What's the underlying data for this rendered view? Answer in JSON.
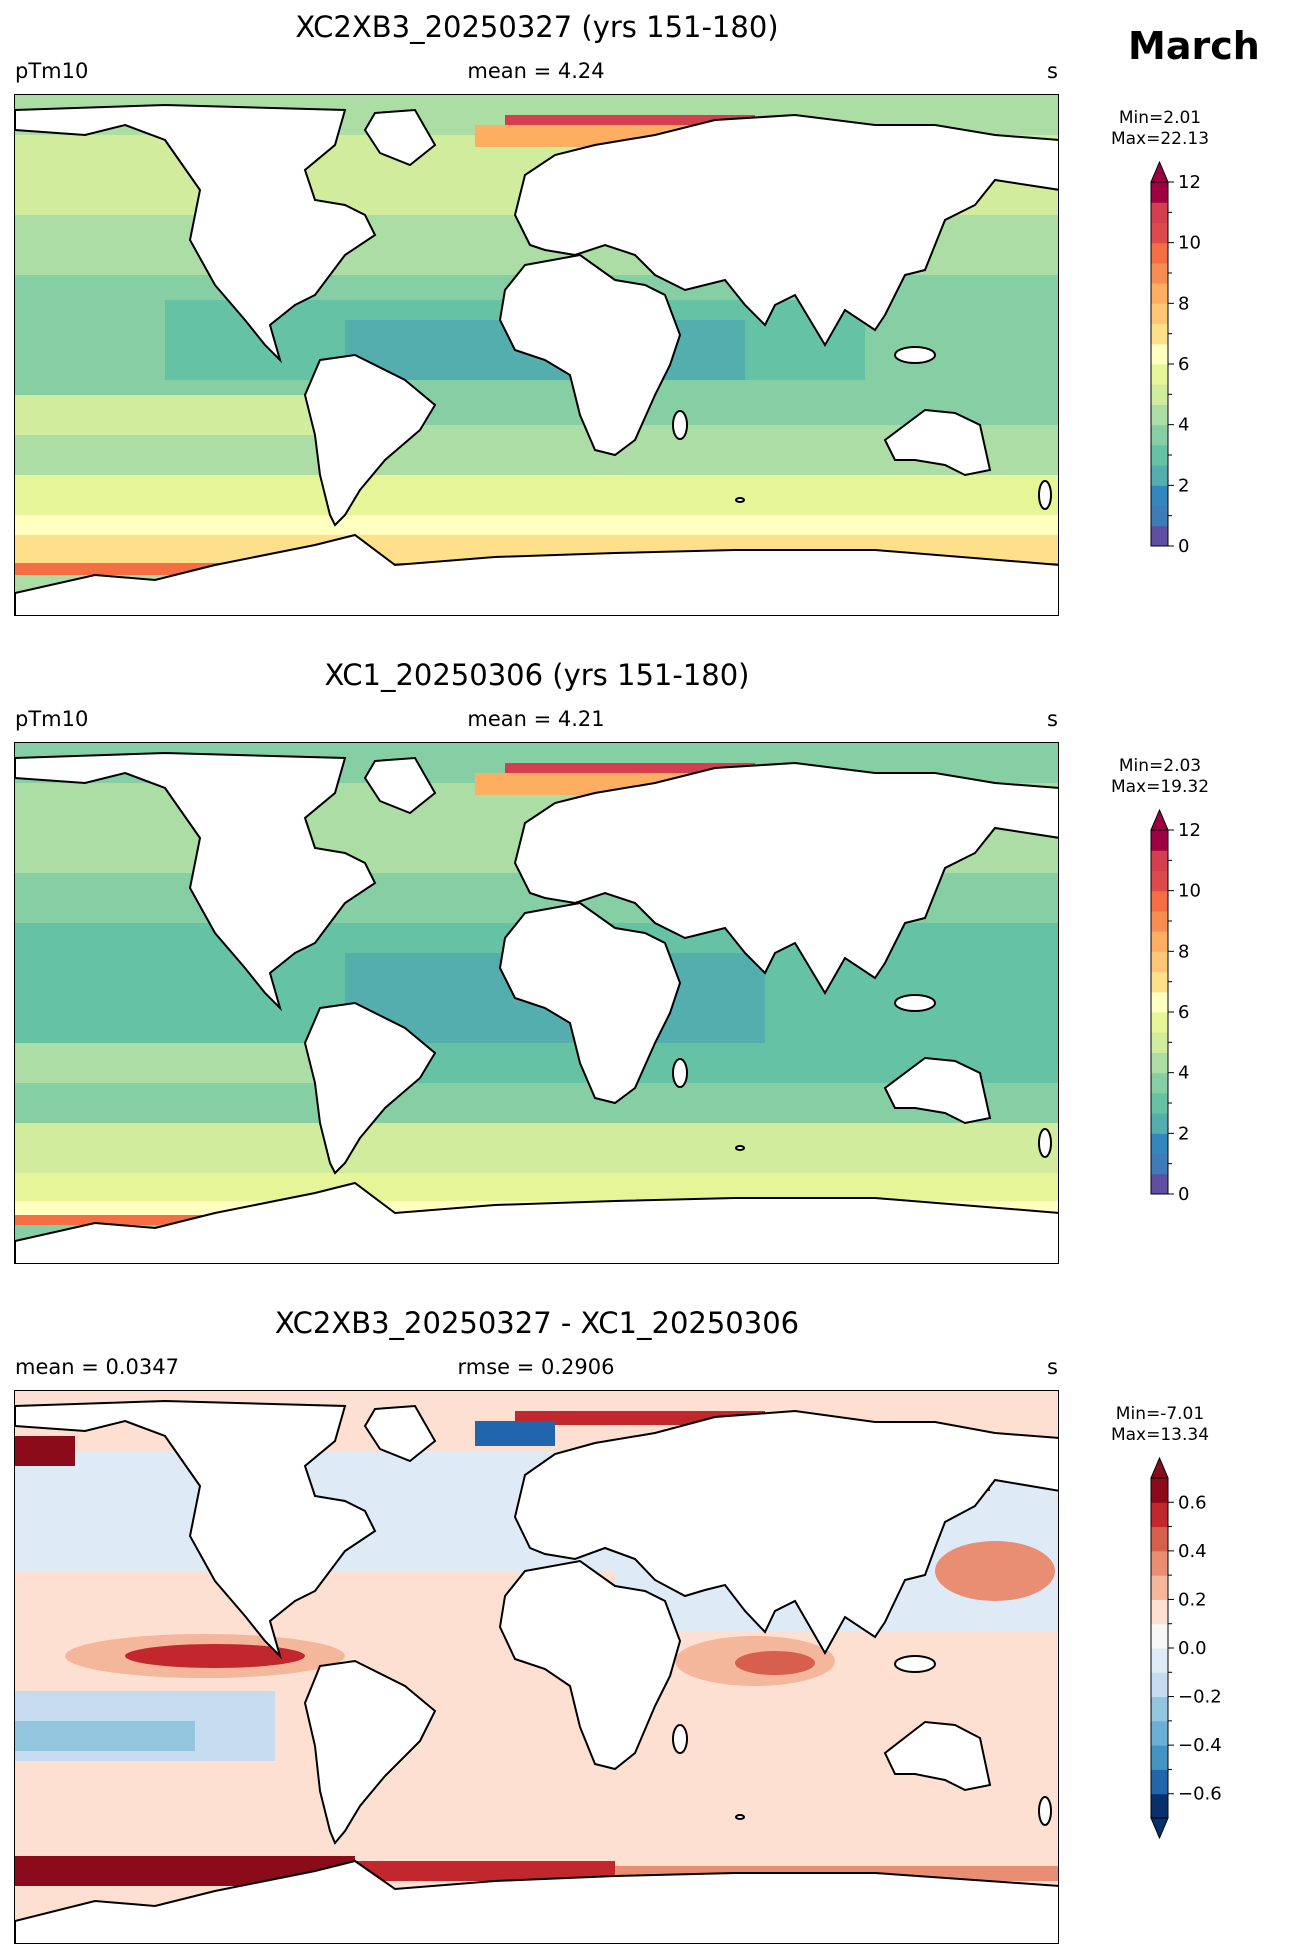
{
  "month": "March",
  "panels": [
    {
      "title": "XC2XB3_20250327 (yrs 151-180)",
      "left_label": "pTm10",
      "center_label": "mean = 4.24",
      "right_label": "s",
      "min_label": "Min=2.01",
      "max_label": "Max=22.13",
      "colorbar": {
        "ticks": [
          "0",
          "2",
          "4",
          "6",
          "8",
          "10",
          "12"
        ],
        "colors": [
          "#5e4fa2",
          "#3e7cb8",
          "#3288bd",
          "#54aead",
          "#66c2a5",
          "#86cfa5",
          "#abdda4",
          "#d1ec9c",
          "#e6f598",
          "#ffffbf",
          "#fee08b",
          "#fdc574",
          "#fdae61",
          "#f88d52",
          "#f46d43",
          "#dc4a4c",
          "#d53e4f",
          "#9e0142"
        ],
        "extend": "max"
      }
    },
    {
      "title": "XC1_20250306 (yrs 151-180)",
      "left_label": "pTm10",
      "center_label": "mean = 4.21",
      "right_label": "s",
      "min_label": "Min=2.03",
      "max_label": "Max=19.32",
      "colorbar": {
        "ticks": [
          "0",
          "2",
          "4",
          "6",
          "8",
          "10",
          "12"
        ],
        "colors": [
          "#5e4fa2",
          "#3e7cb8",
          "#3288bd",
          "#54aead",
          "#66c2a5",
          "#86cfa5",
          "#abdda4",
          "#d1ec9c",
          "#e6f598",
          "#ffffbf",
          "#fee08b",
          "#fdc574",
          "#fdae61",
          "#f88d52",
          "#f46d43",
          "#dc4a4c",
          "#d53e4f",
          "#9e0142"
        ],
        "extend": "max"
      }
    },
    {
      "title": "XC2XB3_20250327 - XC1_20250306",
      "left_label": "mean = 0.0347",
      "center_label": "rmse = 0.2906",
      "right_label": "s",
      "min_label": "Min=-7.01",
      "max_label": "Max=13.34",
      "colorbar": {
        "ticks": [
          "−0.6",
          "−0.4",
          "−0.2",
          "0.0",
          "0.2",
          "0.4",
          "0.6"
        ],
        "colors": [
          "#08306b",
          "#2166ac",
          "#4393c3",
          "#6baed6",
          "#92c5de",
          "#c6dbef",
          "#deebf7",
          "#f7f7f7",
          "#fde0d2",
          "#f4b79c",
          "#e98e72",
          "#d6604d",
          "#c1272d",
          "#8c0b1b"
        ],
        "extend": "both"
      }
    }
  ]
}
